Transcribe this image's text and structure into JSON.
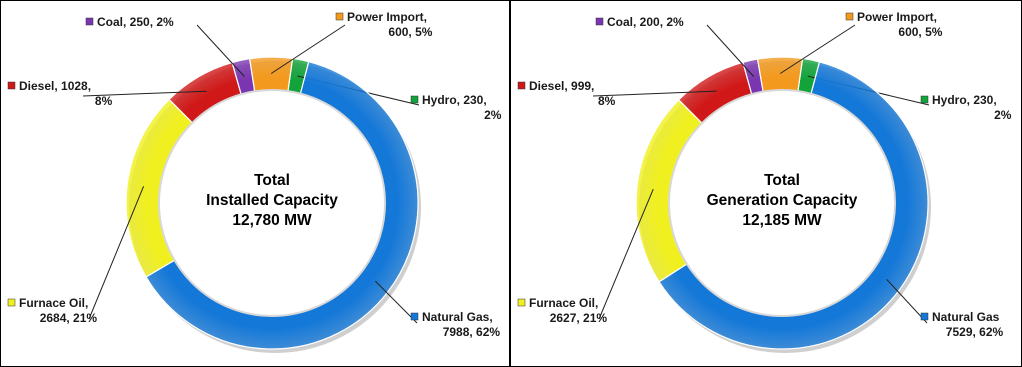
{
  "chart_data": [
    {
      "type": "pie",
      "donut": true,
      "center_text": [
        "Total",
        "Installed Capacity",
        "12,780 MW"
      ],
      "slices": [
        {
          "name": "Hydro",
          "value": 230,
          "percent": "2%",
          "color": "#12a33a",
          "label": [
            "Hydro, 230,",
            "2%"
          ]
        },
        {
          "name": "Natural Gas",
          "value": 7988,
          "percent": "62%",
          "color": "#1478d8",
          "label": [
            "Natural Gas,",
            "7988, 62%"
          ]
        },
        {
          "name": "Furnace Oil",
          "value": 2684,
          "percent": "21%",
          "color": "#f0f020",
          "label": [
            "Furnace Oil,",
            "2684, 21%"
          ]
        },
        {
          "name": "Diesel",
          "value": 1028,
          "percent": "8%",
          "color": "#d01818",
          "label": [
            "Diesel, 1028,",
            "8%"
          ]
        },
        {
          "name": "Coal",
          "value": 250,
          "percent": "2%",
          "color": "#7a36b0",
          "label": [
            "Coal, 250, 2%"
          ]
        },
        {
          "name": "Power Import",
          "value": 600,
          "percent": "5%",
          "color": "#f39a1e",
          "label": [
            "Power Import,",
            "600, 5%"
          ]
        }
      ]
    },
    {
      "type": "pie",
      "donut": true,
      "center_text": [
        "Total",
        "Generation Capacity",
        "12,185 MW"
      ],
      "slices": [
        {
          "name": "Hydro",
          "value": 230,
          "percent": "2%",
          "color": "#12a33a",
          "label": [
            "Hydro, 230,",
            "2%"
          ]
        },
        {
          "name": "Natural Gas",
          "value": 7529,
          "percent": "62%",
          "color": "#1478d8",
          "label": [
            "Natural Gas",
            "7529, 62%"
          ]
        },
        {
          "name": "Furnace Oil",
          "value": 2627,
          "percent": "21%",
          "color": "#f0f020",
          "label": [
            "Furnace Oil,",
            "2627, 21%"
          ]
        },
        {
          "name": "Diesel",
          "value": 999,
          "percent": "8%",
          "color": "#d01818",
          "label": [
            "Diesel, 999,",
            "8%"
          ]
        },
        {
          "name": "Coal",
          "value": 200,
          "percent": "2%",
          "color": "#7a36b0",
          "label": [
            "Coal, 200, 2%"
          ]
        },
        {
          "name": "Power Import",
          "value": 600,
          "percent": "5%",
          "color": "#f39a1e",
          "label": [
            "Power Import,",
            "600, 5%"
          ]
        }
      ]
    }
  ]
}
